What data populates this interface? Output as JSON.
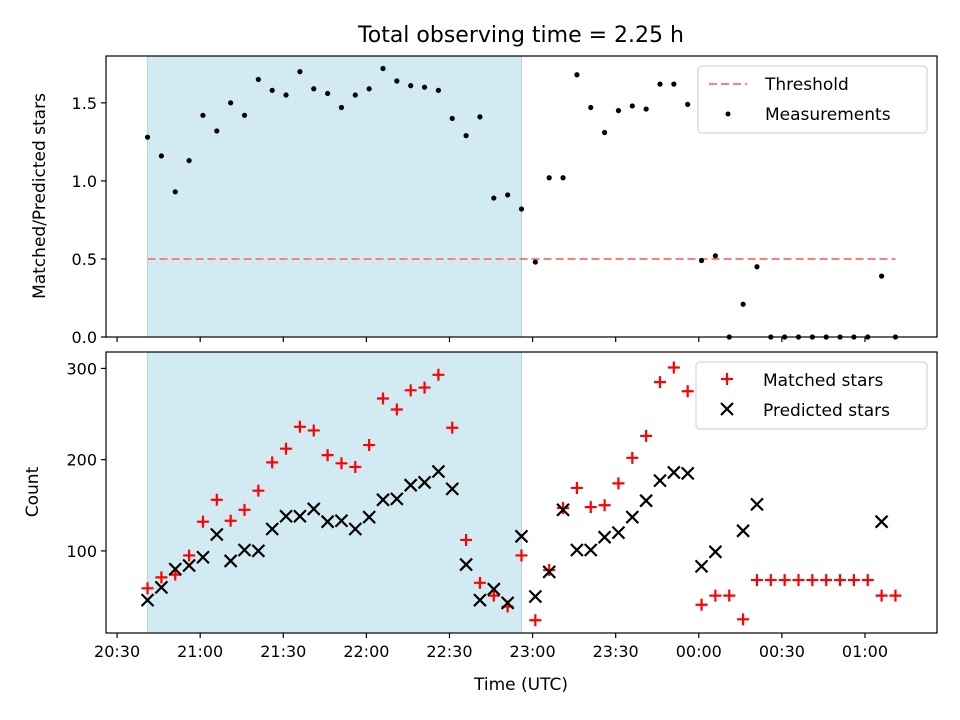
{
  "chart_data": {
    "type": "scatter",
    "title": "Total observing time = 2.25 h",
    "xlabel": "Time (UTC)",
    "x_tick_labels": [
      "20:30",
      "21:00",
      "21:30",
      "22:00",
      "22:30",
      "23:00",
      "23:30",
      "00:00",
      "00:30",
      "01:00"
    ],
    "xlim": [
      "20:26",
      "01:26"
    ],
    "highlight_span": [
      "20:41",
      "22:56"
    ],
    "colors": {
      "span": "#add8e6",
      "threshold": "#ff7f7f",
      "measurements": "#000000",
      "matched": "#ff0000",
      "predicted": "#000000"
    },
    "panels": [
      {
        "id": "ratio",
        "ylabel": "Matched/Predicted stars",
        "ylim": [
          0,
          1.8
        ],
        "yticks": [
          "0.0",
          "0.5",
          "1.0",
          "1.5"
        ],
        "legend_position": "upper right",
        "threshold": {
          "name": "Threshold",
          "y": 0.5,
          "x_start": "20:41",
          "x_end": "01:11"
        },
        "series": [
          {
            "name": "Measurements",
            "marker": "dot",
            "points": [
              [
                "20:41",
                1.28
              ],
              [
                "20:46",
                1.16
              ],
              [
                "20:51",
                0.93
              ],
              [
                "20:56",
                1.13
              ],
              [
                "21:01",
                1.42
              ],
              [
                "21:06",
                1.32
              ],
              [
                "21:11",
                1.5
              ],
              [
                "21:16",
                1.42
              ],
              [
                "21:21",
                1.65
              ],
              [
                "21:26",
                1.58
              ],
              [
                "21:31",
                1.55
              ],
              [
                "21:36",
                1.7
              ],
              [
                "21:41",
                1.59
              ],
              [
                "21:46",
                1.56
              ],
              [
                "21:51",
                1.47
              ],
              [
                "21:56",
                1.55
              ],
              [
                "22:01",
                1.59
              ],
              [
                "22:06",
                1.72
              ],
              [
                "22:11",
                1.64
              ],
              [
                "22:16",
                1.61
              ],
              [
                "22:21",
                1.6
              ],
              [
                "22:26",
                1.58
              ],
              [
                "22:31",
                1.4
              ],
              [
                "22:36",
                1.29
              ],
              [
                "22:41",
                1.41
              ],
              [
                "22:46",
                0.89
              ],
              [
                "22:51",
                0.91
              ],
              [
                "22:56",
                0.82
              ],
              [
                "23:01",
                0.48
              ],
              [
                "23:06",
                1.02
              ],
              [
                "23:11",
                1.02
              ],
              [
                "23:16",
                1.68
              ],
              [
                "23:21",
                1.47
              ],
              [
                "23:26",
                1.31
              ],
              [
                "23:31",
                1.45
              ],
              [
                "23:36",
                1.48
              ],
              [
                "23:41",
                1.46
              ],
              [
                "23:46",
                1.62
              ],
              [
                "23:51",
                1.62
              ],
              [
                "23:56",
                1.49
              ],
              [
                "00:01",
                0.49
              ],
              [
                "00:06",
                0.52
              ],
              [
                "00:11",
                0.0
              ],
              [
                "00:16",
                0.21
              ],
              [
                "00:21",
                0.45
              ],
              [
                "00:26",
                0.0
              ],
              [
                "00:31",
                0.0
              ],
              [
                "00:36",
                0.0
              ],
              [
                "00:41",
                0.0
              ],
              [
                "00:46",
                0.0
              ],
              [
                "00:51",
                0.0
              ],
              [
                "00:56",
                0.0
              ],
              [
                "01:01",
                0.0
              ],
              [
                "01:06",
                0.39
              ],
              [
                "01:11",
                0.0
              ]
            ]
          }
        ]
      },
      {
        "id": "counts",
        "ylabel": "Count",
        "ylim": [
          10,
          318
        ],
        "yticks": [
          "100",
          "200",
          "300"
        ],
        "legend_position": "upper right",
        "series": [
          {
            "name": "Matched stars",
            "marker": "plus",
            "points": [
              [
                "20:41",
                59
              ],
              [
                "20:46",
                71
              ],
              [
                "20:51",
                74
              ],
              [
                "20:56",
                95
              ],
              [
                "21:01",
                132
              ],
              [
                "21:06",
                156
              ],
              [
                "21:11",
                133
              ],
              [
                "21:16",
                145
              ],
              [
                "21:21",
                166
              ],
              [
                "21:26",
                197
              ],
              [
                "21:31",
                212
              ],
              [
                "21:36",
                236
              ],
              [
                "21:41",
                232
              ],
              [
                "21:46",
                205
              ],
              [
                "21:51",
                196
              ],
              [
                "21:56",
                192
              ],
              [
                "22:01",
                216
              ],
              [
                "22:06",
                267
              ],
              [
                "22:11",
                255
              ],
              [
                "22:16",
                276
              ],
              [
                "22:21",
                279
              ],
              [
                "22:26",
                293
              ],
              [
                "22:31",
                235
              ],
              [
                "22:36",
                112
              ],
              [
                "22:41",
                65
              ],
              [
                "22:46",
                51
              ],
              [
                "22:51",
                39
              ],
              [
                "22:56",
                95
              ],
              [
                "23:01",
                24
              ],
              [
                "23:06",
                79
              ],
              [
                "23:11",
                147
              ],
              [
                "23:16",
                169
              ],
              [
                "23:21",
                148
              ],
              [
                "23:26",
                150
              ],
              [
                "23:31",
                174
              ],
              [
                "23:36",
                202
              ],
              [
                "23:41",
                226
              ],
              [
                "23:46",
                285
              ],
              [
                "23:51",
                301
              ],
              [
                "23:56",
                275
              ],
              [
                "00:01",
                41
              ],
              [
                "00:06",
                51
              ],
              [
                "00:11",
                51
              ],
              [
                "00:16",
                25
              ],
              [
                "00:21",
                68
              ],
              [
                "00:26",
                68
              ],
              [
                "00:31",
                68
              ],
              [
                "00:36",
                68
              ],
              [
                "00:41",
                68
              ],
              [
                "00:46",
                68
              ],
              [
                "00:51",
                68
              ],
              [
                "00:56",
                68
              ],
              [
                "01:01",
                68
              ],
              [
                "01:06",
                51
              ],
              [
                "01:11",
                51
              ]
            ]
          },
          {
            "name": "Predicted stars",
            "marker": "x",
            "points": [
              [
                "20:41",
                46
              ],
              [
                "20:46",
                60
              ],
              [
                "20:51",
                80
              ],
              [
                "20:56",
                84
              ],
              [
                "21:01",
                93
              ],
              [
                "21:06",
                118
              ],
              [
                "21:11",
                89
              ],
              [
                "21:16",
                101
              ],
              [
                "21:21",
                100
              ],
              [
                "21:26",
                124
              ],
              [
                "21:31",
                138
              ],
              [
                "21:36",
                138
              ],
              [
                "21:41",
                146
              ],
              [
                "21:46",
                132
              ],
              [
                "21:51",
                133
              ],
              [
                "21:56",
                124
              ],
              [
                "22:01",
                137
              ],
              [
                "22:06",
                156
              ],
              [
                "22:11",
                157
              ],
              [
                "22:16",
                172
              ],
              [
                "22:21",
                175
              ],
              [
                "22:26",
                187
              ],
              [
                "22:31",
                168
              ],
              [
                "22:36",
                85
              ],
              [
                "22:41",
                46
              ],
              [
                "22:46",
                58
              ],
              [
                "22:51",
                43
              ],
              [
                "22:56",
                116
              ],
              [
                "23:01",
                50
              ],
              [
                "23:06",
                77
              ],
              [
                "23:11",
                145
              ],
              [
                "23:16",
                101
              ],
              [
                "23:21",
                101
              ],
              [
                "23:26",
                115
              ],
              [
                "23:31",
                120
              ],
              [
                "23:36",
                137
              ],
              [
                "23:41",
                155
              ],
              [
                "23:46",
                177
              ],
              [
                "23:51",
                186
              ],
              [
                "23:56",
                185
              ],
              [
                "00:01",
                83
              ],
              [
                "00:06",
                99
              ],
              [
                "00:16",
                122
              ],
              [
                "00:21",
                151
              ],
              [
                "01:06",
                132
              ]
            ]
          }
        ]
      }
    ]
  }
}
